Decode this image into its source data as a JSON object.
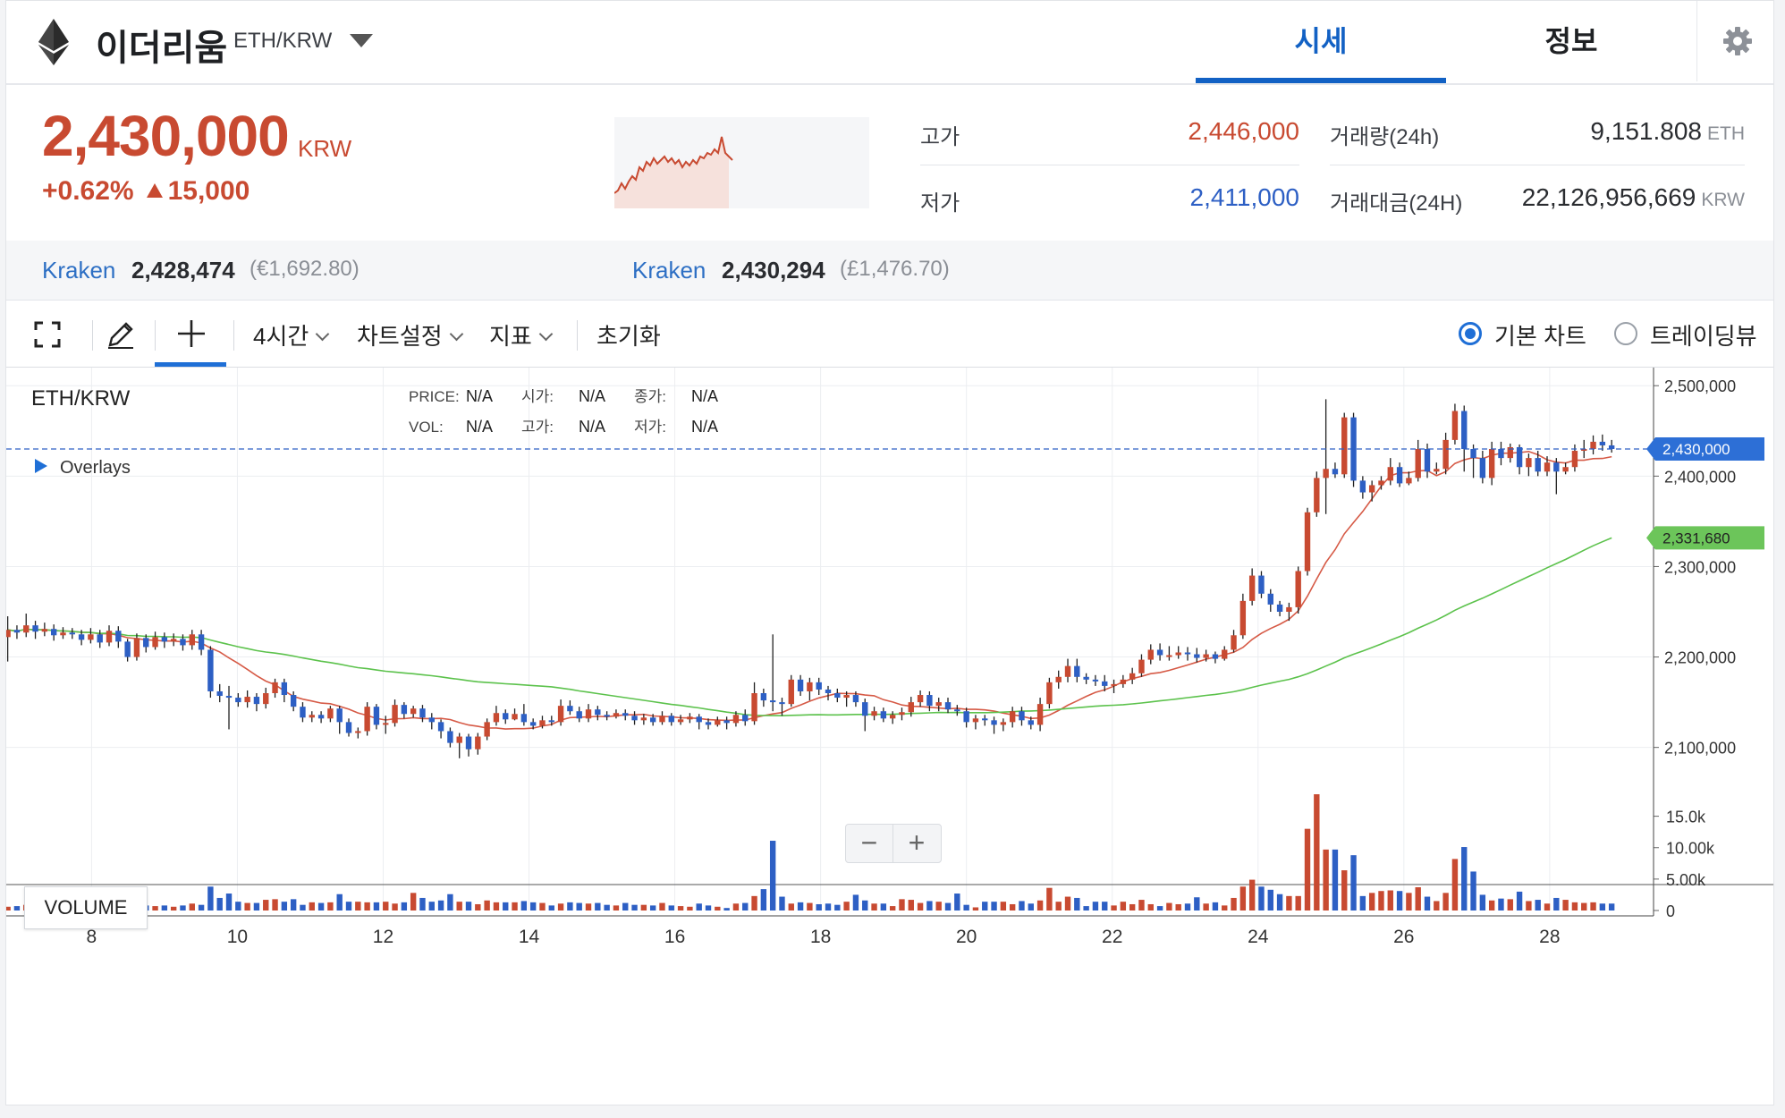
{
  "header": {
    "coin_name": "이더리움",
    "pair": "ETH/KRW",
    "tabs": [
      "시세",
      "정보"
    ]
  },
  "price": {
    "current": "2,430,000",
    "unit": "KRW",
    "change_percent": "+0.62%",
    "change_amount": "15,000",
    "high_label": "고가",
    "high_value": "2,446,000",
    "low_label": "저가",
    "low_value": "2,411,000",
    "volume_label": "거래량(24h)",
    "volume_value": "9,151.808",
    "volume_unit": "ETH",
    "turnover_label": "거래대금(24H)",
    "turnover_value": "22,126,956,669",
    "turnover_unit": "KRW"
  },
  "exchanges": [
    {
      "name": "Kraken",
      "value": "2,428,474",
      "fx": "(€1,692.80)"
    },
    {
      "name": "Kraken",
      "value": "2,430,294",
      "fx": "(£1,476.70)"
    }
  ],
  "toolbar": {
    "interval": "4시간",
    "chart_settings": "차트설정",
    "indicators": "지표",
    "reset": "초기화",
    "basic_chart": "기본 차트",
    "tradingview": "트레이딩뷰"
  },
  "colors": {
    "up": "#c84a31",
    "down": "#2d5fc4",
    "accent": "#1261c4",
    "ma_short": "#d65a46",
    "ma_long": "#5cc24c"
  },
  "chart_legend": {
    "symbol": "ETH/KRW",
    "overlays": "Overlays",
    "price_label": "PRICE:",
    "vol_label": "VOL:",
    "open_label": "시가:",
    "high_label": "고가:",
    "close_label": "종가:",
    "low_label": "저가:",
    "na": "N/A",
    "volume_badge": "VOLUME",
    "zoom_out": "−",
    "zoom_in": "+"
  },
  "chart_data": {
    "type": "candlestick",
    "y_ticks": [
      "2,500,000",
      "2,400,000",
      "2,300,000",
      "2,200,000",
      "2,100,000"
    ],
    "y_tick_values": [
      2500000,
      2400000,
      2300000,
      2200000,
      2100000
    ],
    "ylim": [
      2070000,
      2520000
    ],
    "x_ticks": [
      "8",
      "10",
      "12",
      "14",
      "16",
      "18",
      "20",
      "22",
      "24",
      "26",
      "28"
    ],
    "x_tick_values": [
      8,
      10,
      12,
      14,
      16,
      18,
      20,
      22,
      24,
      26,
      28
    ],
    "xlim": [
      6.83,
      29.4
    ],
    "current_price_tag": "2,430,000",
    "ma_long_tag": "2,331,680",
    "vol_ticks": [
      "15.0k",
      "10.00k",
      "5.00k",
      "0"
    ],
    "vol_tick_values": [
      15000,
      10000,
      5000,
      0
    ],
    "vol_max": 19500,
    "candles": [
      [
        2222000,
        2230000,
        2245000,
        2195000,
        600
      ],
      [
        2230000,
        2227000,
        2235000,
        2220000,
        700
      ],
      [
        2227000,
        2235000,
        2248000,
        2222000,
        900
      ],
      [
        2235000,
        2228000,
        2240000,
        2220000,
        500
      ],
      [
        2228000,
        2231000,
        2238000,
        2223000,
        500
      ],
      [
        2231000,
        2224000,
        2236000,
        2218000,
        600
      ],
      [
        2224000,
        2227000,
        2233000,
        2220000,
        400
      ],
      [
        2227000,
        2225000,
        2232000,
        2220000,
        400
      ],
      [
        2225000,
        2219000,
        2230000,
        2213000,
        500
      ],
      [
        2219000,
        2225000,
        2232000,
        2215000,
        400
      ],
      [
        2225000,
        2216000,
        2230000,
        2210000,
        1100
      ],
      [
        2216000,
        2229000,
        2235000,
        2212000,
        1400
      ],
      [
        2229000,
        2217000,
        2234000,
        2210000,
        1100
      ],
      [
        2217000,
        2200000,
        2220000,
        2195000,
        900
      ],
      [
        2200000,
        2221000,
        2226000,
        2196000,
        1000
      ],
      [
        2221000,
        2211000,
        2225000,
        2205000,
        800
      ],
      [
        2211000,
        2222000,
        2228000,
        2208000,
        700
      ],
      [
        2222000,
        2217000,
        2227000,
        2210000,
        800
      ],
      [
        2217000,
        2220000,
        2226000,
        2212000,
        600
      ],
      [
        2220000,
        2213000,
        2225000,
        2207000,
        800
      ],
      [
        2213000,
        2225000,
        2230000,
        2208000,
        1100
      ],
      [
        2225000,
        2208000,
        2230000,
        2202000,
        900
      ],
      [
        2208000,
        2162000,
        2212000,
        2155000,
        3800
      ],
      [
        2162000,
        2157000,
        2170000,
        2150000,
        2000
      ],
      [
        2157000,
        2155000,
        2168000,
        2120000,
        2700
      ],
      [
        2155000,
        2150000,
        2160000,
        2145000,
        1400
      ],
      [
        2150000,
        2156000,
        2163000,
        2144000,
        1200
      ],
      [
        2156000,
        2148000,
        2160000,
        2140000,
        1200
      ],
      [
        2148000,
        2160000,
        2166000,
        2143000,
        1700
      ],
      [
        2160000,
        2172000,
        2176000,
        2155000,
        1800
      ],
      [
        2172000,
        2158000,
        2176000,
        2150000,
        1400
      ],
      [
        2158000,
        2145000,
        2162000,
        2140000,
        1800
      ],
      [
        2145000,
        2133000,
        2150000,
        2128000,
        900
      ],
      [
        2133000,
        2136000,
        2140000,
        2128000,
        1300
      ],
      [
        2136000,
        2132000,
        2140000,
        2127000,
        1200
      ],
      [
        2132000,
        2143000,
        2146000,
        2128000,
        1300
      ],
      [
        2143000,
        2128000,
        2146000,
        2115000,
        2600
      ],
      [
        2128000,
        2116000,
        2132000,
        2112000,
        1400
      ],
      [
        2116000,
        2118000,
        2122000,
        2110000,
        1400
      ],
      [
        2118000,
        2145000,
        2150000,
        2113000,
        1300
      ],
      [
        2145000,
        2125000,
        2148000,
        2120000,
        1300
      ],
      [
        2125000,
        2127000,
        2135000,
        2115000,
        1400
      ],
      [
        2127000,
        2147000,
        2153000,
        2123000,
        1100
      ],
      [
        2147000,
        2137000,
        2150000,
        2132000,
        1300
      ],
      [
        2137000,
        2143000,
        2146000,
        2133000,
        2800
      ],
      [
        2143000,
        2133000,
        2147000,
        2128000,
        2000
      ],
      [
        2133000,
        2128000,
        2138000,
        2120000,
        1400
      ],
      [
        2128000,
        2118000,
        2131000,
        2110000,
        1600
      ],
      [
        2118000,
        2105000,
        2122000,
        2100000,
        2600
      ],
      [
        2105000,
        2112000,
        2116000,
        2088000,
        1400
      ],
      [
        2112000,
        2098000,
        2115000,
        2090000,
        1400
      ],
      [
        2098000,
        2112000,
        2116000,
        2092000,
        1000
      ],
      [
        2112000,
        2128000,
        2132000,
        2108000,
        1600
      ],
      [
        2128000,
        2138000,
        2146000,
        2124000,
        1300
      ],
      [
        2138000,
        2131000,
        2142000,
        2126000,
        1300
      ],
      [
        2131000,
        2137000,
        2143000,
        2130000,
        1300
      ],
      [
        2137000,
        2128000,
        2148000,
        2124000,
        1500
      ],
      [
        2128000,
        2124000,
        2132000,
        2120000,
        1300
      ],
      [
        2124000,
        2130000,
        2135000,
        2121000,
        1200
      ],
      [
        2130000,
        2128000,
        2135000,
        2124000,
        800
      ],
      [
        2128000,
        2146000,
        2153000,
        2124000,
        1100
      ],
      [
        2146000,
        2140000,
        2152000,
        2136000,
        1300
      ],
      [
        2140000,
        2132000,
        2145000,
        2128000,
        1200
      ],
      [
        2132000,
        2142000,
        2148000,
        2128000,
        1100
      ],
      [
        2142000,
        2136000,
        2146000,
        2130000,
        1200
      ],
      [
        2136000,
        2134000,
        2140000,
        2130000,
        900
      ],
      [
        2134000,
        2138000,
        2142000,
        2132000,
        800
      ],
      [
        2138000,
        2135000,
        2142000,
        2130000,
        1200
      ],
      [
        2135000,
        2130000,
        2140000,
        2125000,
        900
      ],
      [
        2130000,
        2133000,
        2137000,
        2125000,
        900
      ],
      [
        2133000,
        2128000,
        2137000,
        2124000,
        800
      ],
      [
        2128000,
        2135000,
        2140000,
        2125000,
        1200
      ],
      [
        2135000,
        2128000,
        2138000,
        2124000,
        800
      ],
      [
        2128000,
        2131000,
        2136000,
        2125000,
        700
      ],
      [
        2131000,
        2134000,
        2138000,
        2127000,
        600
      ],
      [
        2134000,
        2128000,
        2137000,
        2120000,
        1100
      ],
      [
        2128000,
        2125000,
        2132000,
        2120000,
        800
      ],
      [
        2125000,
        2130000,
        2134000,
        2123000,
        600
      ],
      [
        2130000,
        2127000,
        2134000,
        2120000,
        400
      ],
      [
        2127000,
        2136000,
        2140000,
        2123000,
        1100
      ],
      [
        2136000,
        2129000,
        2142000,
        2124000,
        1200
      ],
      [
        2129000,
        2160000,
        2172000,
        2125000,
        2300
      ],
      [
        2160000,
        2152000,
        2165000,
        2145000,
        3400
      ],
      [
        2152000,
        2150000,
        2225000,
        2140000,
        11100
      ],
      [
        2150000,
        2148000,
        2155000,
        2135000,
        2200
      ],
      [
        2148000,
        2175000,
        2180000,
        2145000,
        1100
      ],
      [
        2175000,
        2162000,
        2180000,
        2157000,
        1300
      ],
      [
        2162000,
        2172000,
        2177000,
        2152000,
        1200
      ],
      [
        2172000,
        2164000,
        2177000,
        2158000,
        1000
      ],
      [
        2164000,
        2160000,
        2168000,
        2152000,
        1100
      ],
      [
        2160000,
        2155000,
        2165000,
        2150000,
        900
      ],
      [
        2155000,
        2158000,
        2162000,
        2145000,
        1400
      ],
      [
        2158000,
        2150000,
        2162000,
        2145000,
        2500
      ],
      [
        2150000,
        2135000,
        2154000,
        2118000,
        1600
      ],
      [
        2135000,
        2140000,
        2145000,
        2130000,
        1100
      ],
      [
        2140000,
        2132000,
        2144000,
        2128000,
        1100
      ],
      [
        2132000,
        2136000,
        2140000,
        2126000,
        700
      ],
      [
        2136000,
        2139000,
        2144000,
        2130000,
        1800
      ],
      [
        2139000,
        2150000,
        2156000,
        2134000,
        1700
      ],
      [
        2150000,
        2158000,
        2163000,
        2145000,
        1200
      ],
      [
        2158000,
        2146000,
        2162000,
        2140000,
        1500
      ],
      [
        2146000,
        2150000,
        2155000,
        2140000,
        1400
      ],
      [
        2150000,
        2142000,
        2155000,
        2138000,
        1200
      ],
      [
        2142000,
        2140000,
        2147000,
        2135000,
        2700
      ],
      [
        2140000,
        2128000,
        2144000,
        2122000,
        900
      ],
      [
        2128000,
        2132000,
        2136000,
        2120000,
        500
      ],
      [
        2132000,
        2130000,
        2136000,
        2124000,
        1400
      ],
      [
        2130000,
        2125000,
        2134000,
        2115000,
        1400
      ],
      [
        2125000,
        2128000,
        2132000,
        2118000,
        1400
      ],
      [
        2128000,
        2140000,
        2145000,
        2122000,
        1000
      ],
      [
        2140000,
        2130000,
        2145000,
        2124000,
        1500
      ],
      [
        2130000,
        2125000,
        2134000,
        2120000,
        1100
      ],
      [
        2125000,
        2148000,
        2155000,
        2118000,
        1600
      ],
      [
        2148000,
        2172000,
        2177000,
        2143000,
        3600
      ],
      [
        2172000,
        2178000,
        2185000,
        2165000,
        1400
      ],
      [
        2178000,
        2190000,
        2198000,
        2172000,
        2200
      ],
      [
        2190000,
        2178000,
        2198000,
        2172000,
        2000
      ],
      [
        2178000,
        2175000,
        2182000,
        2170000,
        700
      ],
      [
        2175000,
        2173000,
        2180000,
        2168000,
        1400
      ],
      [
        2173000,
        2168000,
        2180000,
        2162000,
        1400
      ],
      [
        2168000,
        2170000,
        2175000,
        2160000,
        800
      ],
      [
        2170000,
        2175000,
        2180000,
        2166000,
        1400
      ],
      [
        2175000,
        2182000,
        2188000,
        2170000,
        1000
      ],
      [
        2182000,
        2197000,
        2203000,
        2178000,
        1700
      ],
      [
        2197000,
        2208000,
        2214000,
        2192000,
        1000
      ],
      [
        2208000,
        2202000,
        2215000,
        2196000,
        700
      ],
      [
        2202000,
        2202000,
        2212000,
        2196000,
        1200
      ],
      [
        2202000,
        2205000,
        2212000,
        2198000,
        1000
      ],
      [
        2205000,
        2203000,
        2211000,
        2196000,
        1100
      ],
      [
        2203000,
        2199000,
        2210000,
        2194000,
        2100
      ],
      [
        2199000,
        2203000,
        2208000,
        2195000,
        1100
      ],
      [
        2203000,
        2198000,
        2206000,
        2193000,
        1300
      ],
      [
        2198000,
        2208000,
        2212000,
        2196000,
        800
      ],
      [
        2208000,
        2224000,
        2230000,
        2205000,
        2000
      ],
      [
        2224000,
        2262000,
        2270000,
        2220000,
        3800
      ],
      [
        2262000,
        2290000,
        2298000,
        2257000,
        4900
      ],
      [
        2290000,
        2270000,
        2295000,
        2265000,
        3800
      ],
      [
        2270000,
        2258000,
        2275000,
        2250000,
        3300
      ],
      [
        2258000,
        2250000,
        2262000,
        2245000,
        2600
      ],
      [
        2250000,
        2255000,
        2260000,
        2240000,
        2300
      ],
      [
        2255000,
        2295000,
        2300000,
        2248000,
        2300
      ],
      [
        2295000,
        2360000,
        2365000,
        2290000,
        13000
      ],
      [
        2360000,
        2398000,
        2405000,
        2355000,
        18500
      ],
      [
        2398000,
        2408000,
        2485000,
        2358000,
        9700
      ],
      [
        2408000,
        2402000,
        2415000,
        2398000,
        9700
      ],
      [
        2402000,
        2465000,
        2470000,
        2398000,
        6400
      ],
      [
        2465000,
        2395000,
        2470000,
        2388000,
        8800
      ],
      [
        2395000,
        2382000,
        2400000,
        2375000,
        2300
      ],
      [
        2382000,
        2390000,
        2395000,
        2372000,
        2800
      ],
      [
        2390000,
        2395000,
        2400000,
        2385000,
        3100
      ],
      [
        2395000,
        2410000,
        2420000,
        2390000,
        3200
      ],
      [
        2410000,
        2392000,
        2415000,
        2388000,
        3100
      ],
      [
        2392000,
        2398000,
        2405000,
        2390000,
        2800
      ],
      [
        2398000,
        2430000,
        2440000,
        2394000,
        3700
      ],
      [
        2430000,
        2405000,
        2436000,
        2398000,
        2200
      ],
      [
        2405000,
        2408000,
        2415000,
        2402000,
        1500
      ],
      [
        2408000,
        2440000,
        2448000,
        2402000,
        2800
      ],
      [
        2440000,
        2472000,
        2480000,
        2435000,
        8200
      ],
      [
        2472000,
        2430000,
        2478000,
        2405000,
        10100
      ],
      [
        2430000,
        2420000,
        2435000,
        2398000,
        6200
      ],
      [
        2420000,
        2398000,
        2428000,
        2392000,
        2500
      ],
      [
        2398000,
        2430000,
        2438000,
        2390000,
        1600
      ],
      [
        2430000,
        2420000,
        2438000,
        2412000,
        1900
      ],
      [
        2420000,
        2432000,
        2436000,
        2415000,
        1800
      ],
      [
        2432000,
        2410000,
        2435000,
        2402000,
        3000
      ],
      [
        2410000,
        2420000,
        2425000,
        2400000,
        1500
      ],
      [
        2420000,
        2405000,
        2428000,
        2400000,
        1700
      ],
      [
        2405000,
        2415000,
        2422000,
        2400000,
        1100
      ],
      [
        2415000,
        2405000,
        2420000,
        2380000,
        2000
      ],
      [
        2405000,
        2410000,
        2415000,
        2402000,
        1700
      ],
      [
        2410000,
        2428000,
        2435000,
        2405000,
        1300
      ],
      [
        2428000,
        2430000,
        2440000,
        2420000,
        1200
      ],
      [
        2430000,
        2438000,
        2445000,
        2424000,
        1300
      ],
      [
        2438000,
        2434000,
        2446000,
        2428000,
        1100
      ],
      [
        2434000,
        2430000,
        2440000,
        2426000,
        1100
      ]
    ]
  }
}
